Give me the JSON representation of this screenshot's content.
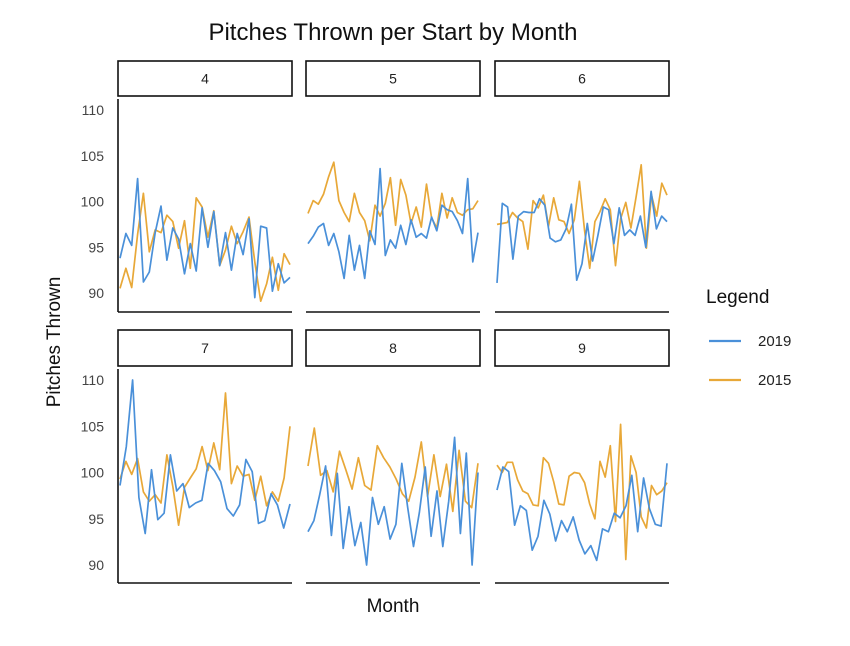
{
  "chart_data": {
    "type": "line",
    "title": "Pitches Thrown per Start by Month",
    "xlabel": "Month",
    "ylabel": "Pitches Thrown",
    "ylim": [
      88,
      111
    ],
    "yticks": [
      90,
      95,
      100,
      105,
      110
    ],
    "grid": false,
    "legend": {
      "title": "Legend",
      "placement": "right",
      "entries": [
        {
          "label": "2019",
          "color": "#4a90d9"
        },
        {
          "label": "2015",
          "color": "#e8a838"
        }
      ]
    },
    "panels": [
      {
        "label": "4",
        "series": [
          {
            "name": "2019",
            "values": [
              93.8,
              96.5,
              95.2,
              102.5,
              91.2,
              92.3,
              96.6,
              99.5,
              93.6,
              97.1,
              95.9,
              92.1,
              95.4,
              92.4,
              99.3,
              95.0,
              98.9,
              93.0,
              96.6,
              92.5,
              96.5,
              94.2,
              98.1,
              89.5,
              97.3,
              97.1,
              90.2,
              93.2,
              91.1,
              91.7
            ]
          },
          {
            "name": "2015",
            "values": [
              90.5,
              92.7,
              90.6,
              96.4,
              100.9,
              94.5,
              96.9,
              96.6,
              98.5,
              97.8,
              94.9,
              97.9,
              92.7,
              100.4,
              99.4,
              96.1,
              99.0,
              93.0,
              94.7,
              97.3,
              95.4,
              96.7,
              98.3,
              93.4,
              89.1,
              91.0,
              93.9,
              90.3,
              94.3,
              93.1
            ]
          }
        ]
      },
      {
        "label": "5",
        "series": [
          {
            "name": "2019",
            "values": [
              95.4,
              96.2,
              97.2,
              97.6,
              95.2,
              96.5,
              94.5,
              91.6,
              96.3,
              92.5,
              95.2,
              91.6,
              96.8,
              95.3,
              103.6,
              94.1,
              95.8,
              94.9,
              97.4,
              95.3,
              98.0,
              96.1,
              96.5,
              96.0,
              98.3,
              96.8,
              99.6,
              99.1,
              98.9,
              97.9,
              96.5,
              102.5,
              93.4,
              96.6
            ]
          },
          {
            "name": "2015",
            "values": [
              98.7,
              100.1,
              99.7,
              100.8,
              102.7,
              104.3,
              100.1,
              98.8,
              97.8,
              100.9,
              98.8,
              97.9,
              95.7,
              99.6,
              98.4,
              99.8,
              102.6,
              97.4,
              102.4,
              100.7,
              97.6,
              99.4,
              97.2,
              101.9,
              98.2,
              97.1,
              100.9,
              98.2,
              100.4,
              98.8,
              98.5,
              99.1,
              99.2,
              100.1
            ]
          }
        ]
      },
      {
        "label": "6",
        "series": [
          {
            "name": "2019",
            "values": [
              91.1,
              99.8,
              99.4,
              93.7,
              98.4,
              98.9,
              98.8,
              98.8,
              100.3,
              99.6,
              96.0,
              95.6,
              95.8,
              97.0,
              99.7,
              91.4,
              93.2,
              97.6,
              93.5,
              96.3,
              99.4,
              99.1,
              95.4,
              99.3,
              96.3,
              96.9,
              96.3,
              98.4,
              95.0,
              101.1,
              97.0,
              98.4,
              97.8
            ]
          },
          {
            "name": "2015",
            "values": [
              97.5,
              97.6,
              97.7,
              98.8,
              98.2,
              97.8,
              94.8,
              100.1,
              99.3,
              100.7,
              97.3,
              100.4,
              98.0,
              97.8,
              96.5,
              98.0,
              102.2,
              96.8,
              92.7,
              97.8,
              98.9,
              100.3,
              99.1,
              93.0,
              98.1,
              99.9,
              97.1,
              100.5,
              104.0,
              94.9,
              100.7,
              98.4,
              102.0,
              100.7
            ]
          }
        ]
      },
      {
        "label": "7",
        "series": [
          {
            "name": "2019",
            "values": [
              98.6,
              102.8,
              110.0,
              97.3,
              93.4,
              100.3,
              94.9,
              95.6,
              101.9,
              98.0,
              98.8,
              96.2,
              96.7,
              97.0,
              101.0,
              100.2,
              99.0,
              96.1,
              95.3,
              96.5,
              101.4,
              100.1,
              94.5,
              94.8,
              97.7,
              96.5,
              94.0,
              96.6
            ]
          },
          {
            "name": "2015",
            "values": [
              99.3,
              101.2,
              99.8,
              101.5,
              97.9,
              96.9,
              97.6,
              96.7,
              101.9,
              98.5,
              94.3,
              98.4,
              99.4,
              100.4,
              102.8,
              100.2,
              103.2,
              100.3,
              108.6,
              98.8,
              100.7,
              99.6,
              99.8,
              97.0,
              99.6,
              96.4,
              97.9,
              96.9,
              99.4,
              105.0
            ]
          }
        ]
      },
      {
        "label": "8",
        "series": [
          {
            "name": "2019",
            "values": [
              93.6,
              94.8,
              97.6,
              100.7,
              93.2,
              99.9,
              91.8,
              96.3,
              92.1,
              94.6,
              90.0,
              97.3,
              94.4,
              96.3,
              92.8,
              94.4,
              101.0,
              96.2,
              92.0,
              95.7,
              100.6,
              93.1,
              98.0,
              92.0,
              96.9,
              103.8,
              93.4,
              102.1,
              90.0,
              100.0
            ]
          },
          {
            "name": "2015",
            "values": [
              100.7,
              104.8,
              99.7,
              100.2,
              97.9,
              102.3,
              100.3,
              98.2,
              101.6,
              98.6,
              98.1,
              102.9,
              101.6,
              100.6,
              99.3,
              97.7,
              96.9,
              99.5,
              103.3,
              97.4,
              101.9,
              97.4,
              100.9,
              95.8,
              102.4,
              96.9,
              96.2,
              101.0
            ]
          }
        ]
      },
      {
        "label": "9",
        "series": [
          {
            "name": "2019",
            "values": [
              98.1,
              100.6,
              100.1,
              94.3,
              96.4,
              95.9,
              91.6,
              93.1,
              97.0,
              95.5,
              92.6,
              94.8,
              93.6,
              95.2,
              92.7,
              91.2,
              92.1,
              90.5,
              93.9,
              93.6,
              95.6,
              95.1,
              96.4,
              99.7,
              93.6,
              99.4,
              96.1,
              94.4,
              94.2,
              101.0
            ]
          },
          {
            "name": "2015",
            "values": [
              100.8,
              100.0,
              101.1,
              101.1,
              99.2,
              98.0,
              97.7,
              96.5,
              96.4,
              101.6,
              101.0,
              99.0,
              96.6,
              96.5,
              99.6,
              100.0,
              99.9,
              98.9,
              96.6,
              95.0,
              101.2,
              99.5,
              102.9,
              94.7,
              105.2,
              90.6,
              101.8,
              100.0,
              95.2,
              94.0,
              98.6,
              97.6,
              98.0,
              98.9
            ]
          }
        ]
      }
    ]
  }
}
